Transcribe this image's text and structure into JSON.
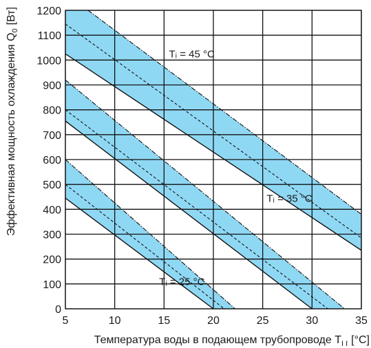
{
  "chart_data": {
    "type": "area",
    "xlabel": "Температура воды в подающем трубопроводе T",
    "xlabel_sub": "I I",
    "xlabel_unit": "[°C]",
    "ylabel": "Эффективная мощность охлаждения Q",
    "ylabel_sub": "0",
    "ylabel_unit": "[Вт]",
    "xlim": [
      5,
      35
    ],
    "ylim": [
      0,
      1200
    ],
    "xticks": [
      "5",
      "10",
      "15",
      "20",
      "25",
      "30",
      "35"
    ],
    "yticks": [
      "0",
      "100",
      "200",
      "300",
      "400",
      "500",
      "600",
      "700",
      "800",
      "900",
      "1000",
      "1100",
      "1200"
    ],
    "grid": true,
    "colors": {
      "band": "#8fd8f4",
      "line": "#111111",
      "grid": "#111111"
    },
    "series": [
      {
        "annotation": "Tᵢ = 25 °C",
        "label_at": [
          14.5,
          95
        ],
        "lower": [
          [
            5,
            445
          ],
          [
            20,
            0
          ]
        ],
        "middle": [
          [
            5,
            500
          ],
          [
            21.1,
            0
          ]
        ],
        "upper": [
          [
            5,
            600
          ],
          [
            22.2,
            0
          ]
        ]
      },
      {
        "annotation": "Tᵢ = 35 °C",
        "label_at": [
          25.4,
          430
        ],
        "lower": [
          [
            5,
            755
          ],
          [
            30,
            0
          ]
        ],
        "middle": [
          [
            5,
            800
          ],
          [
            31.6,
            0
          ]
        ],
        "upper": [
          [
            5,
            920
          ],
          [
            33.3,
            0
          ]
        ]
      },
      {
        "annotation": "Tᵢ = 45 °C",
        "label_at": [
          15.5,
          1010
        ],
        "lower": [
          [
            5,
            1025
          ],
          [
            35,
            235
          ]
        ],
        "middle": [
          [
            5,
            1145
          ],
          [
            35,
            285
          ]
        ],
        "upper": [
          [
            7.3,
            1200
          ],
          [
            35,
            380
          ]
        ]
      }
    ]
  }
}
